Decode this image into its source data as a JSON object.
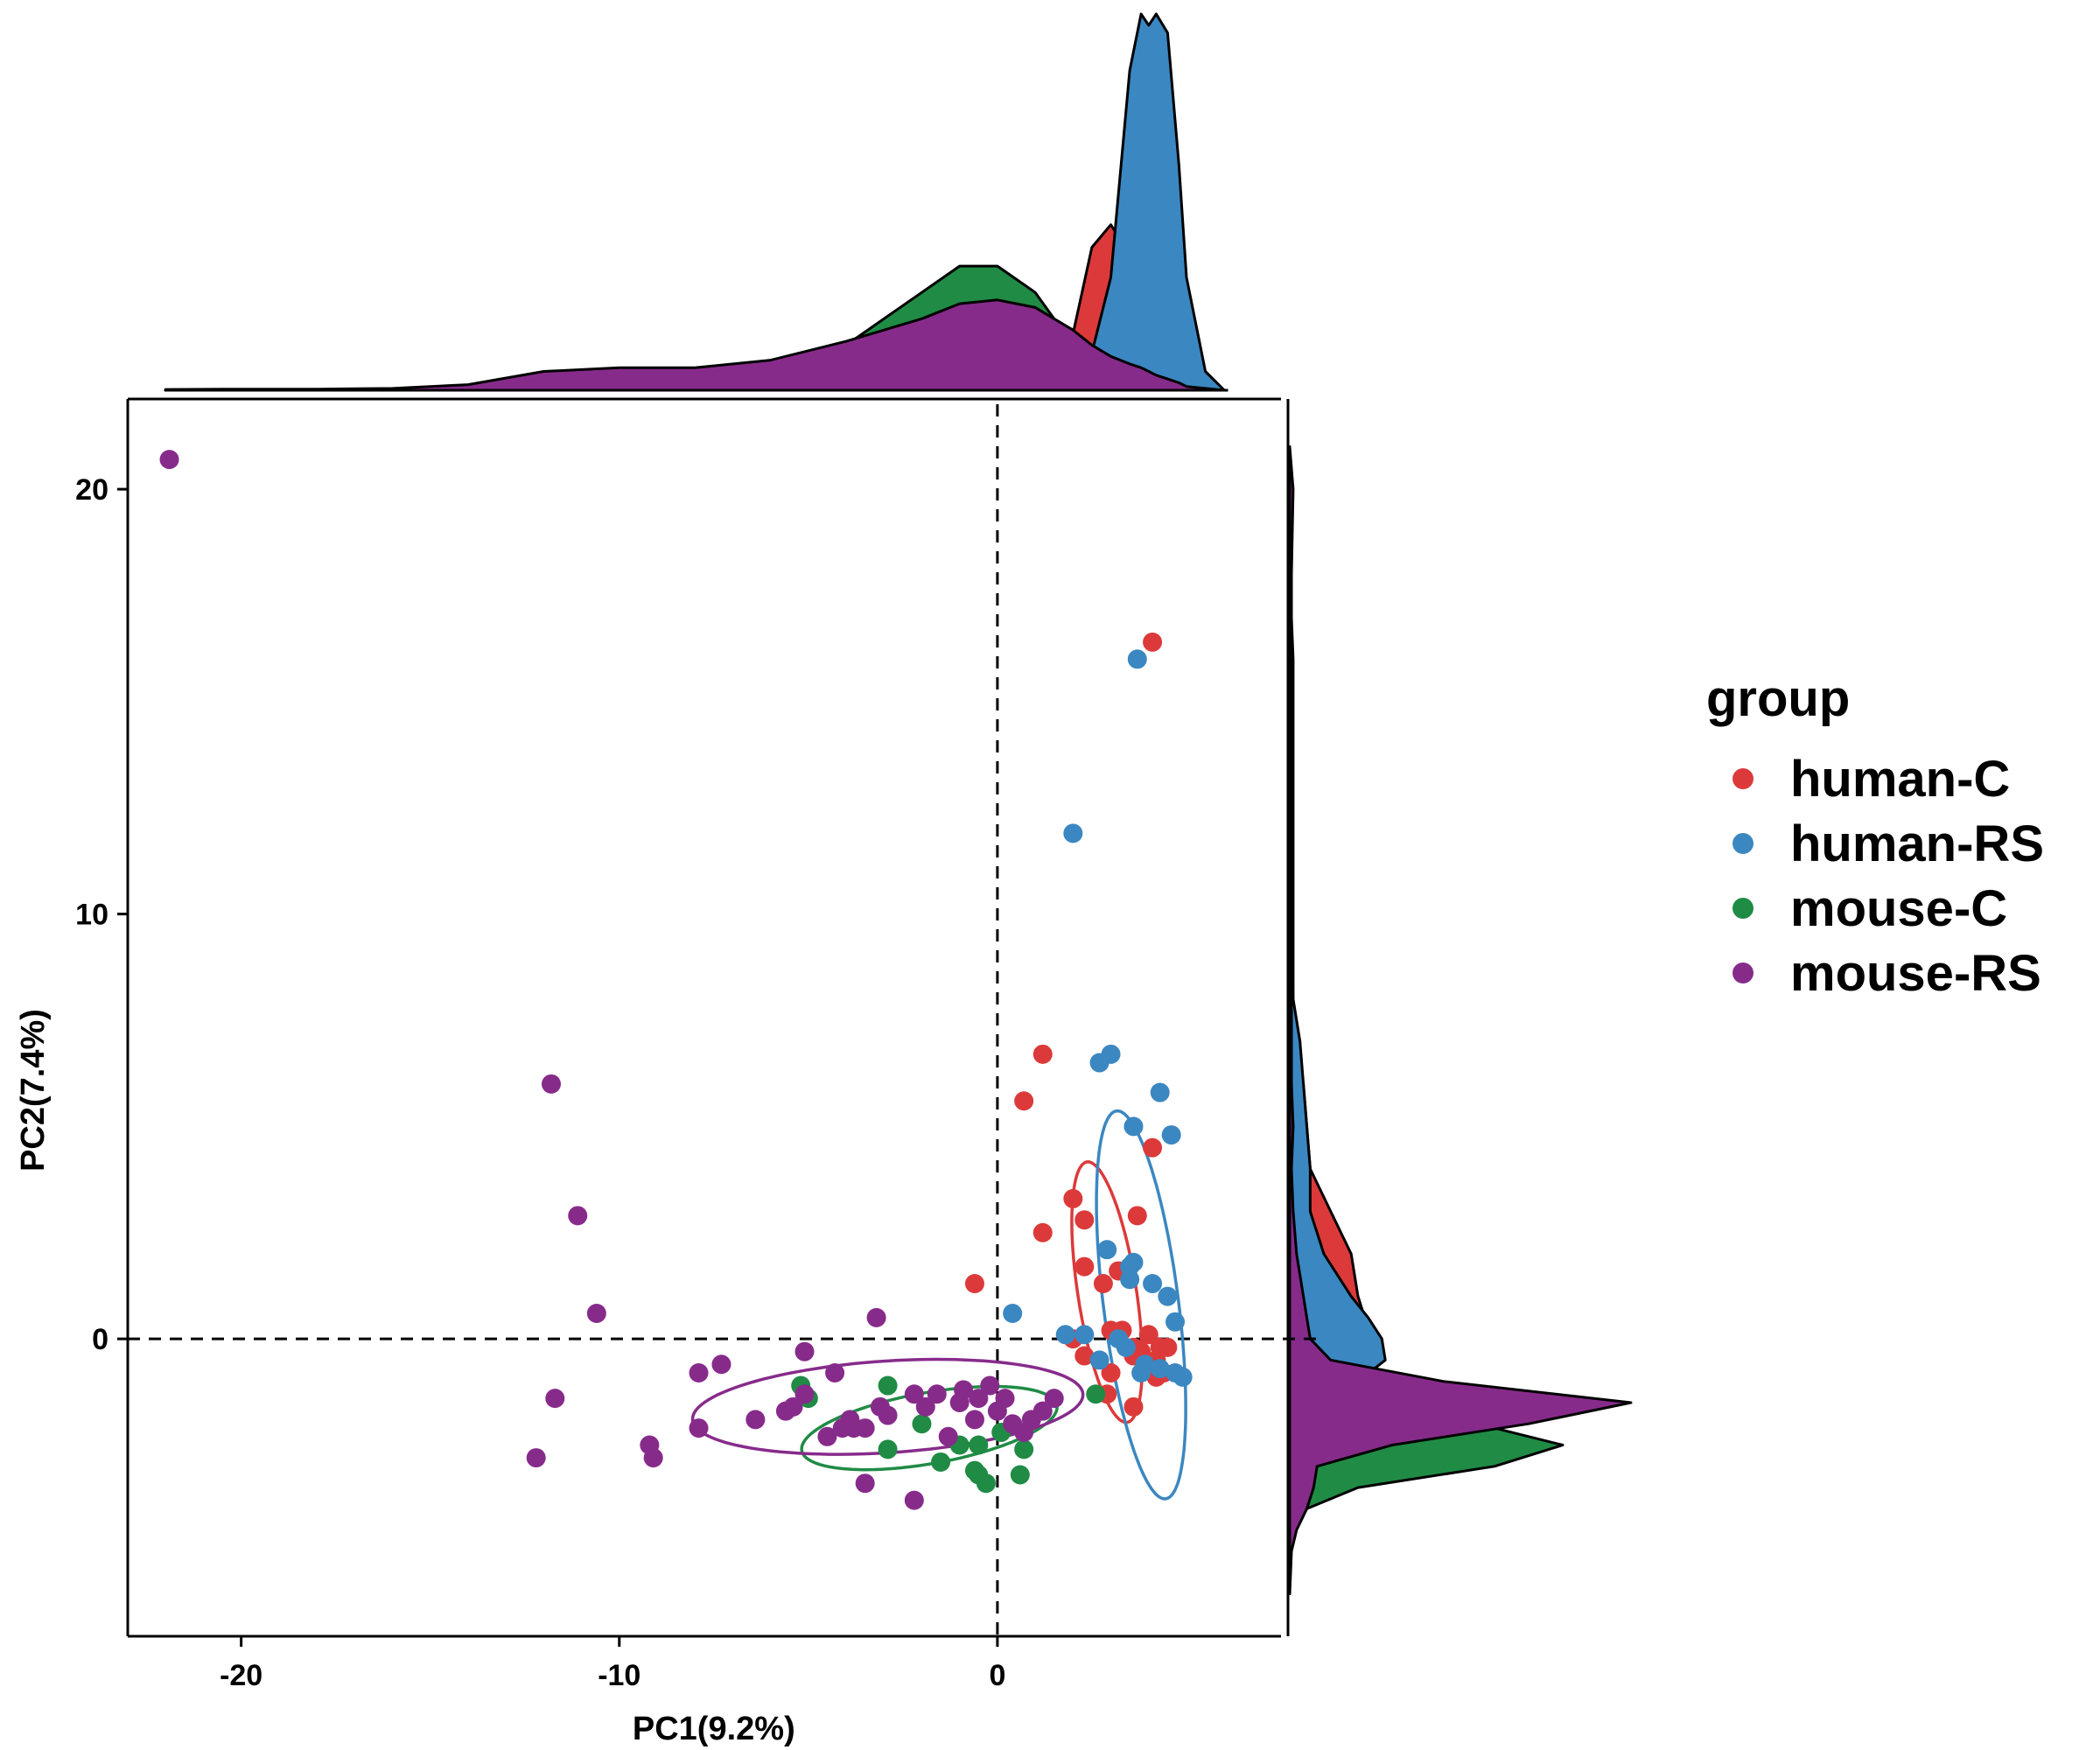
{
  "chart_data": {
    "type": "scatter",
    "subtype": "PCA scatter with marginal density plots and 95% confidence ellipses",
    "xlabel": "PC1(9.2%)",
    "ylabel": "PC2(7.4%)",
    "xlim": [
      -23,
      7.5
    ],
    "ylim": [
      -7.0,
      22.0
    ],
    "x_ticks": [
      -20,
      -10,
      0
    ],
    "y_ticks": [
      0,
      10,
      20
    ],
    "reference_lines": {
      "x": 0,
      "y": 0,
      "style": "dashed"
    },
    "grid": false,
    "legend": {
      "title": "group",
      "position": "right"
    },
    "series": [
      {
        "name": "human-C",
        "color": "#DC3A3A",
        "points": [
          [
            4.1,
            16.4
          ],
          [
            1.2,
            6.7
          ],
          [
            0.7,
            5.6
          ],
          [
            4.1,
            4.5
          ],
          [
            2.0,
            3.3
          ],
          [
            3.7,
            2.9
          ],
          [
            1.2,
            2.5
          ],
          [
            2.3,
            2.8
          ],
          [
            2.3,
            1.7
          ],
          [
            3.2,
            1.6
          ],
          [
            2.8,
            1.3
          ],
          [
            -0.6,
            1.3
          ],
          [
            3.3,
            0.2
          ],
          [
            4.0,
            0.1
          ],
          [
            3.0,
            0.2
          ],
          [
            2.0,
            0.0
          ],
          [
            3.8,
            -0.3
          ],
          [
            4.3,
            -0.2
          ],
          [
            3.6,
            -0.4
          ],
          [
            4.5,
            -0.2
          ],
          [
            4.2,
            -0.5
          ],
          [
            2.3,
            -0.4
          ],
          [
            3.0,
            -0.8
          ],
          [
            4.2,
            -0.9
          ],
          [
            4.4,
            -0.8
          ],
          [
            3.6,
            -0.2
          ],
          [
            2.9,
            -1.3
          ],
          [
            3.6,
            -1.6
          ]
        ],
        "ellipse": {
          "center": [
            2.9,
            1.1
          ],
          "rx": 5.2,
          "ry": 1.4,
          "angle_deg": -79
        }
      },
      {
        "name": "human-RS",
        "color": "#3B87C1",
        "points": [
          [
            3.7,
            16.0
          ],
          [
            2.0,
            11.9
          ],
          [
            3.0,
            6.7
          ],
          [
            2.7,
            6.5
          ],
          [
            4.3,
            5.8
          ],
          [
            3.6,
            5.0
          ],
          [
            4.6,
            4.8
          ],
          [
            2.9,
            2.1
          ],
          [
            3.6,
            1.8
          ],
          [
            3.5,
            1.7
          ],
          [
            3.5,
            1.4
          ],
          [
            0.4,
            0.6
          ],
          [
            1.8,
            0.1
          ],
          [
            2.3,
            0.1
          ],
          [
            4.1,
            1.3
          ],
          [
            4.5,
            1.0
          ],
          [
            4.7,
            0.4
          ],
          [
            3.2,
            0.0
          ],
          [
            3.4,
            -0.2
          ],
          [
            3.9,
            -0.6
          ],
          [
            3.8,
            -0.8
          ],
          [
            4.3,
            -0.7
          ],
          [
            4.7,
            -0.8
          ],
          [
            4.9,
            -0.9
          ],
          [
            2.7,
            -0.5
          ]
        ],
        "ellipse": {
          "center": [
            3.8,
            0.8
          ],
          "rx": 7.7,
          "ry": 1.8,
          "angle_deg": -81
        }
      },
      {
        "name": "mouse-C",
        "color": "#208B45",
        "points": [
          [
            -5.2,
            -1.1
          ],
          [
            -5.0,
            -1.4
          ],
          [
            -2.9,
            -1.1
          ],
          [
            -2.0,
            -2.0
          ],
          [
            -2.9,
            -2.6
          ],
          [
            -1.5,
            -2.9
          ],
          [
            -0.5,
            -3.2
          ],
          [
            -0.3,
            -3.4
          ],
          [
            0.6,
            -3.2
          ],
          [
            -0.5,
            -2.5
          ],
          [
            0.7,
            -2.6
          ],
          [
            2.6,
            -1.3
          ],
          [
            0.1,
            -2.2
          ],
          [
            -0.6,
            -3.1
          ],
          [
            -1.0,
            -2.5
          ]
        ],
        "ellipse": {
          "center": [
            -1.8,
            -2.1
          ],
          "rx": 6.2,
          "ry": 1.4,
          "angle_deg": 8
        }
      },
      {
        "name": "mouse-RS",
        "color": "#872B8B",
        "points": [
          [
            -21.9,
            20.7
          ],
          [
            -11.8,
            6.0
          ],
          [
            -11.1,
            2.9
          ],
          [
            -10.6,
            0.6
          ],
          [
            -11.7,
            -1.4
          ],
          [
            -12.2,
            -2.8
          ],
          [
            -9.2,
            -2.5
          ],
          [
            -9.1,
            -2.8
          ],
          [
            -7.9,
            -2.1
          ],
          [
            -7.9,
            -0.8
          ],
          [
            -7.3,
            -0.6
          ],
          [
            -6.4,
            -1.9
          ],
          [
            -5.1,
            -0.3
          ],
          [
            -5.1,
            -1.3
          ],
          [
            -5.6,
            -1.7
          ],
          [
            -4.3,
            -0.8
          ],
          [
            -4.5,
            -2.3
          ],
          [
            -4.1,
            -2.1
          ],
          [
            -3.8,
            -2.1
          ],
          [
            -3.5,
            -2.1
          ],
          [
            -3.2,
            0.5
          ],
          [
            -3.1,
            -1.6
          ],
          [
            -2.9,
            -1.8
          ],
          [
            -3.5,
            -3.4
          ],
          [
            -2.2,
            -3.8
          ],
          [
            -2.2,
            -1.3
          ],
          [
            -1.9,
            -1.6
          ],
          [
            -1.6,
            -1.3
          ],
          [
            -1.3,
            -2.3
          ],
          [
            -1.0,
            -1.5
          ],
          [
            -0.9,
            -1.2
          ],
          [
            -0.6,
            -1.9
          ],
          [
            -0.2,
            -1.1
          ],
          [
            0.0,
            -1.7
          ],
          [
            0.2,
            -1.4
          ],
          [
            0.4,
            -2.0
          ],
          [
            0.7,
            -2.2
          ],
          [
            0.9,
            -1.9
          ],
          [
            1.2,
            -1.7
          ],
          [
            1.5,
            -1.4
          ],
          [
            -0.5,
            -1.4
          ],
          [
            -5.4,
            -1.6
          ],
          [
            -3.9,
            -1.9
          ]
        ],
        "ellipse": {
          "center": [
            -2.9,
            -1.6
          ],
          "rx": 9.4,
          "ry": 1.8,
          "angle_deg": 3
        }
      }
    ],
    "marginal_x_density": {
      "x_grid": [
        -22,
        -20,
        -18,
        -16,
        -14,
        -12,
        -10,
        -8,
        -6,
        -4,
        -2,
        -1,
        0,
        1,
        2,
        2.5,
        3,
        3.5,
        3.8,
        4,
        4.2,
        4.5,
        4.8,
        5,
        5.5,
        6
      ],
      "human-C": [
        0,
        0,
        0,
        0,
        0,
        0,
        0,
        0,
        0,
        0,
        0,
        0,
        0,
        0.01,
        0.15,
        0.38,
        0.44,
        0.36,
        0.2,
        0.1,
        0.05,
        0.02,
        0.01,
        0,
        0,
        0
      ],
      "human-RS": [
        0,
        0,
        0,
        0,
        0,
        0,
        0,
        0,
        0,
        0,
        0,
        0,
        0,
        0.02,
        0.05,
        0.1,
        0.3,
        0.85,
        1.0,
        0.97,
        1.0,
        0.95,
        0.6,
        0.3,
        0.05,
        0
      ],
      "mouse-C": [
        0,
        0,
        0,
        0,
        0,
        0,
        0,
        0.01,
        0.04,
        0.12,
        0.26,
        0.33,
        0.33,
        0.26,
        0.12,
        0.06,
        0.03,
        0.01,
        0,
        0,
        0,
        0,
        0,
        0,
        0,
        0
      ],
      "mouse-RS": [
        0.002,
        0.003,
        0.003,
        0.005,
        0.015,
        0.05,
        0.06,
        0.06,
        0.08,
        0.13,
        0.19,
        0.23,
        0.24,
        0.22,
        0.16,
        0.12,
        0.09,
        0.07,
        0.06,
        0.05,
        0.04,
        0.03,
        0.02,
        0.01,
        0.005,
        0
      ]
    },
    "marginal_y_density": {
      "y_grid": [
        -6,
        -5,
        -4.5,
        -4,
        -3.5,
        -3,
        -2.5,
        -2,
        -1.5,
        -1,
        -0.5,
        0,
        0.5,
        1,
        2,
        3,
        4,
        5,
        6,
        7,
        8,
        10,
        12,
        14,
        16,
        18,
        20,
        21
      ],
      "human-C": [
        0,
        0,
        0,
        0,
        0,
        0,
        0.01,
        0.05,
        0.12,
        0.2,
        0.26,
        0.25,
        0.22,
        0.2,
        0.18,
        0.12,
        0.06,
        0.05,
        0.04,
        0.02,
        0.01,
        0.005,
        0.005,
        0.005,
        0.005,
        0,
        0,
        0
      ],
      "human-RS": [
        0,
        0,
        0,
        0,
        0,
        0,
        0.01,
        0.05,
        0.12,
        0.2,
        0.28,
        0.27,
        0.23,
        0.18,
        0.1,
        0.06,
        0.06,
        0.05,
        0.04,
        0.03,
        0.01,
        0.01,
        0.01,
        0.01,
        0.01,
        0,
        0,
        0
      ],
      "mouse-C": [
        0,
        0,
        0.01,
        0.05,
        0.2,
        0.6,
        0.8,
        0.55,
        0.3,
        0.08,
        0.01,
        0,
        0,
        0,
        0,
        0,
        0,
        0,
        0,
        0,
        0,
        0,
        0,
        0,
        0,
        0,
        0,
        0
      ],
      "mouse-RS": [
        0,
        0.005,
        0.02,
        0.05,
        0.07,
        0.08,
        0.3,
        0.7,
        1.0,
        0.45,
        0.12,
        0.06,
        0.05,
        0.04,
        0.02,
        0.01,
        0.005,
        0.01,
        0.005,
        0.005,
        0.005,
        0.005,
        0.005,
        0.005,
        0.005,
        0.005,
        0.01,
        0.0
      ]
    }
  }
}
